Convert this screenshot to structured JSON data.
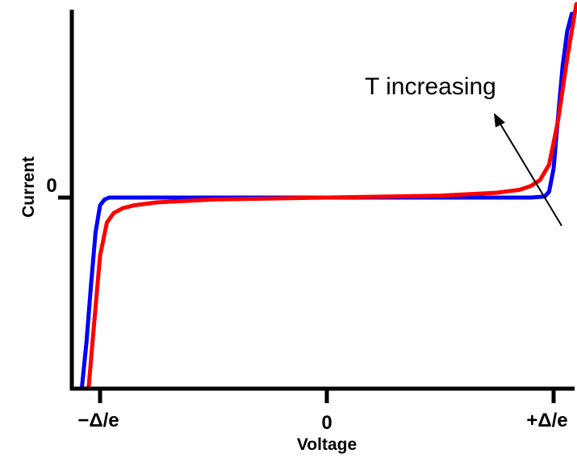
{
  "chart_data": {
    "type": "line",
    "title": "",
    "xlabel": "Voltage",
    "ylabel": "Current",
    "x_ticks": [
      "−Δ/e",
      "0",
      "+Δ/e"
    ],
    "y_ticks": [
      "0"
    ],
    "xlim": [
      -1.1,
      1.1
    ],
    "ylim": [
      -1.0,
      1.0
    ],
    "grid": false,
    "legend": "none",
    "annotation": "T increasing",
    "series": [
      {
        "color": "#0000ff",
        "x": [
          -1.08,
          -1.06,
          -1.04,
          -1.02,
          -1.0,
          -0.98,
          -0.96,
          -0.9,
          -0.5,
          0.0,
          0.5,
          0.9,
          0.96,
          0.98,
          1.0,
          1.02,
          1.04,
          1.06,
          1.08
        ],
        "y": [
          -0.98,
          -0.75,
          -0.45,
          -0.18,
          -0.04,
          -0.01,
          0.0,
          0.0,
          0.0,
          0.0,
          0.0,
          0.0,
          0.005,
          0.03,
          0.15,
          0.42,
          0.68,
          0.86,
          0.95
        ]
      },
      {
        "color": "#ff0000",
        "x": [
          -1.05,
          -1.03,
          -1.0,
          -0.97,
          -0.94,
          -0.9,
          -0.85,
          -0.75,
          -0.5,
          0.0,
          0.5,
          0.75,
          0.85,
          0.9,
          0.94,
          0.98,
          1.02,
          1.06,
          1.1
        ],
        "y": [
          -0.98,
          -0.7,
          -0.3,
          -0.13,
          -0.08,
          -0.055,
          -0.04,
          -0.025,
          -0.01,
          0.0,
          0.01,
          0.025,
          0.04,
          0.06,
          0.09,
          0.17,
          0.4,
          0.72,
          1.0
        ]
      }
    ]
  }
}
